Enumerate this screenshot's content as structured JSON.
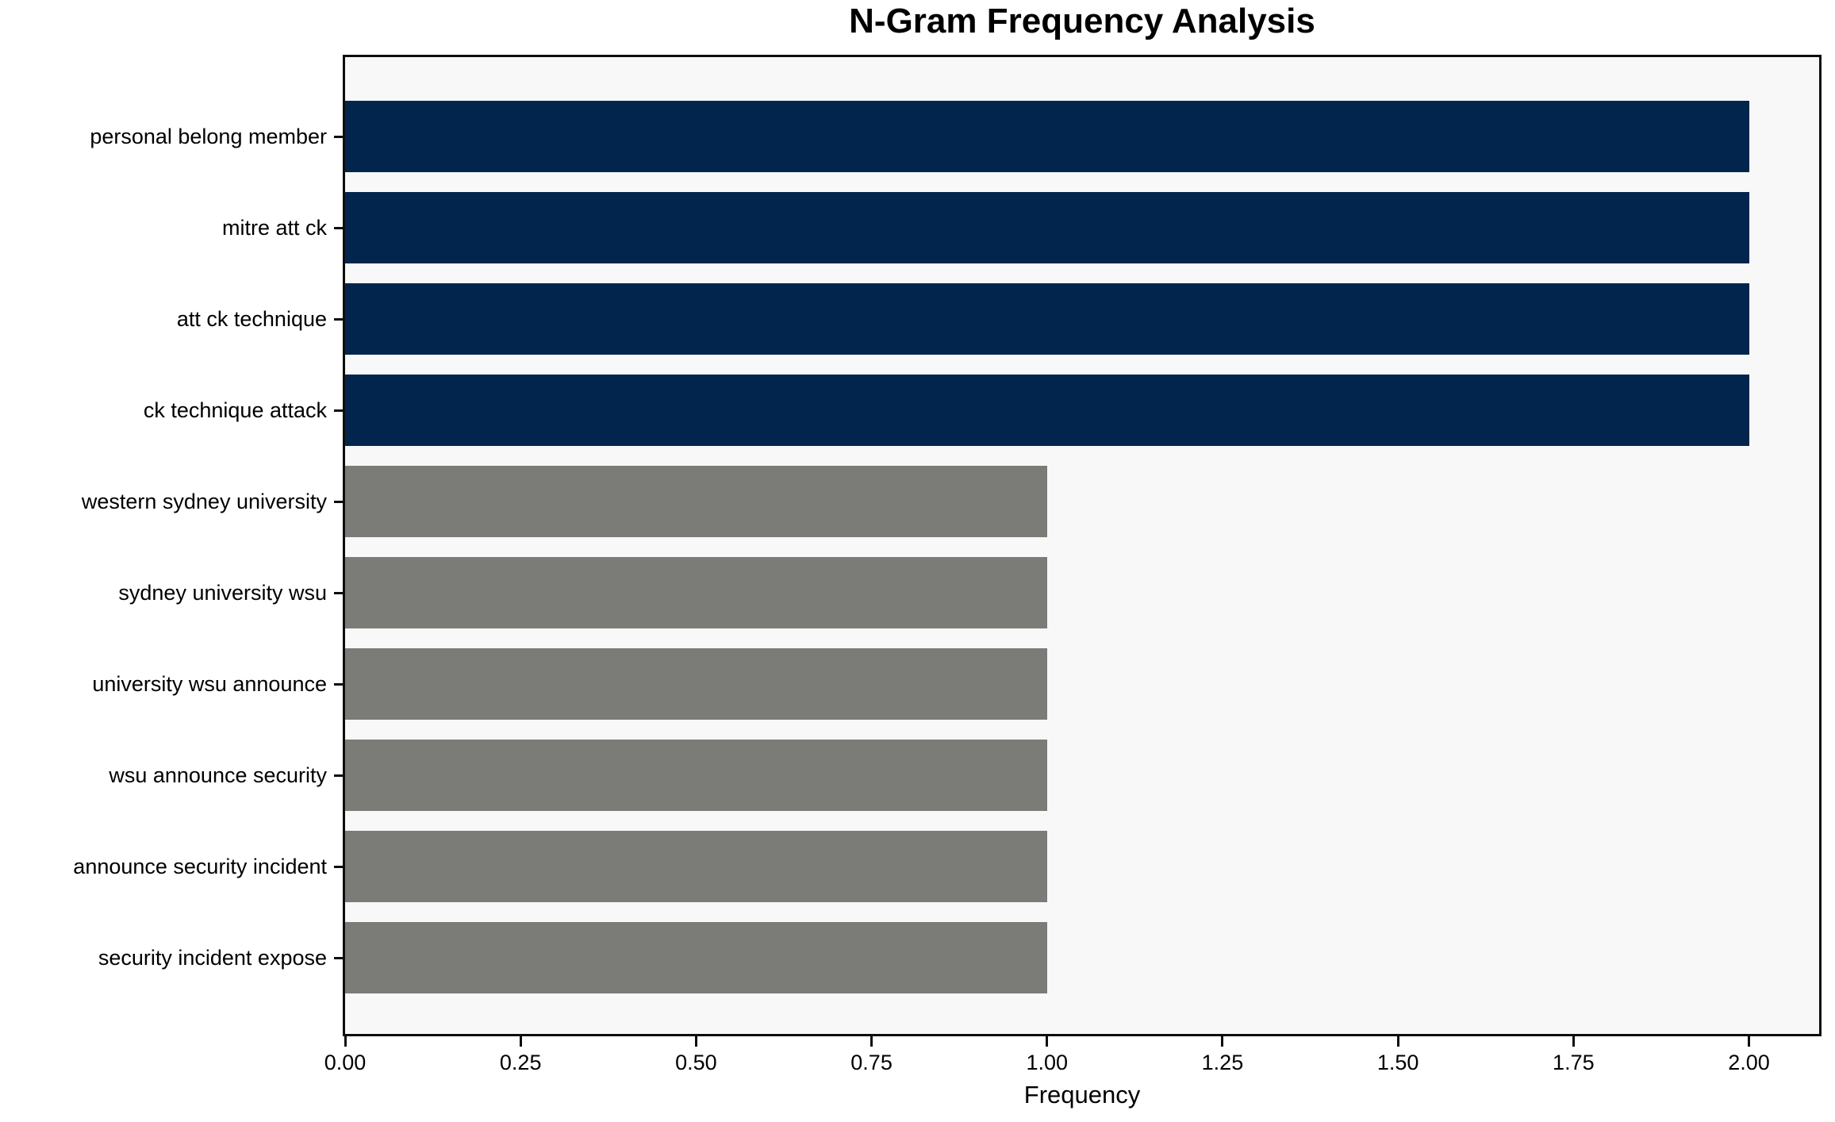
{
  "chart_data": {
    "type": "bar",
    "orientation": "horizontal",
    "title": "N-Gram Frequency Analysis",
    "xlabel": "Frequency",
    "ylabel": "",
    "categories": [
      "personal belong member",
      "mitre att ck",
      "att ck technique",
      "ck technique attack",
      "western sydney university",
      "sydney university wsu",
      "university wsu announce",
      "wsu announce security",
      "announce security incident",
      "security incident expose"
    ],
    "values": [
      2,
      2,
      2,
      2,
      1,
      1,
      1,
      1,
      1,
      1
    ],
    "bar_colors": [
      "#02254d",
      "#02254d",
      "#02254d",
      "#02254d",
      "#7b7b78",
      "#7b7b78",
      "#7b7b78",
      "#7b7b78",
      "#7b7b78",
      "#7b7b78"
    ],
    "xlim": [
      0,
      2.1
    ],
    "xtick_values": [
      0,
      0.25,
      0.5,
      0.75,
      1.0,
      1.25,
      1.5,
      1.75,
      2.0
    ],
    "xtick_labels": [
      "0.00",
      "0.25",
      "0.50",
      "0.75",
      "1.00",
      "1.25",
      "1.50",
      "1.75",
      "2.00"
    ],
    "grid": false,
    "legend": "none",
    "colors": {
      "high_frequency_bar": "#02254d",
      "low_frequency_bar": "#7b7b78",
      "plot_background": "#f8f8f8",
      "figure_background": "#ffffff",
      "axis": "#0d0d0d",
      "text": "#000000"
    }
  }
}
